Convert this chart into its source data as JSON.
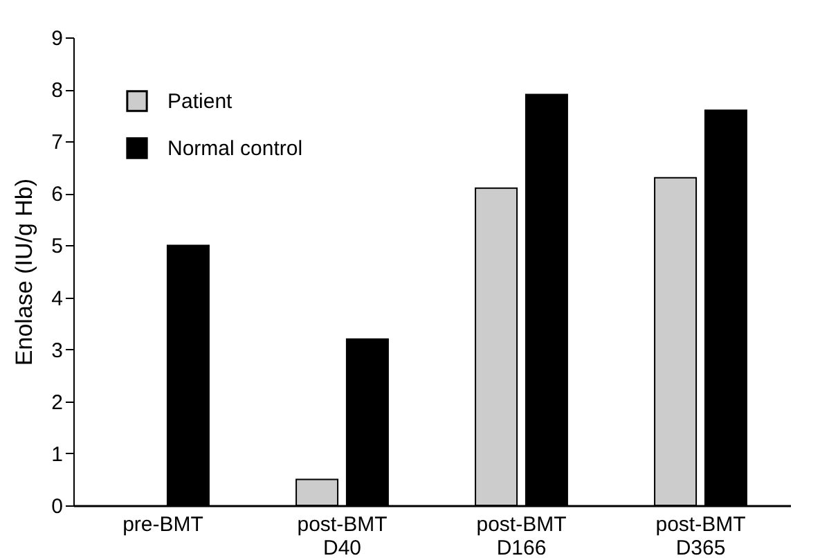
{
  "chart_data": {
    "type": "bar",
    "ylabel": "Enolase (IU/g Hb)",
    "categories": [
      "pre-BMT",
      "post-BMT D40",
      "post-BMT D166",
      "post-BMT D365"
    ],
    "series": [
      {
        "name": "Patient",
        "color": "#cccccc",
        "values": [
          null,
          0.5,
          6.1,
          6.3
        ]
      },
      {
        "name": "Normal control",
        "color": "#000000",
        "values": [
          5.0,
          3.2,
          7.9,
          7.6
        ]
      }
    ],
    "ylim": [
      0,
      9
    ],
    "yticks": [
      0,
      1,
      2,
      3,
      4,
      5,
      6,
      7,
      8,
      9
    ],
    "grid": false,
    "legend": "top left"
  }
}
